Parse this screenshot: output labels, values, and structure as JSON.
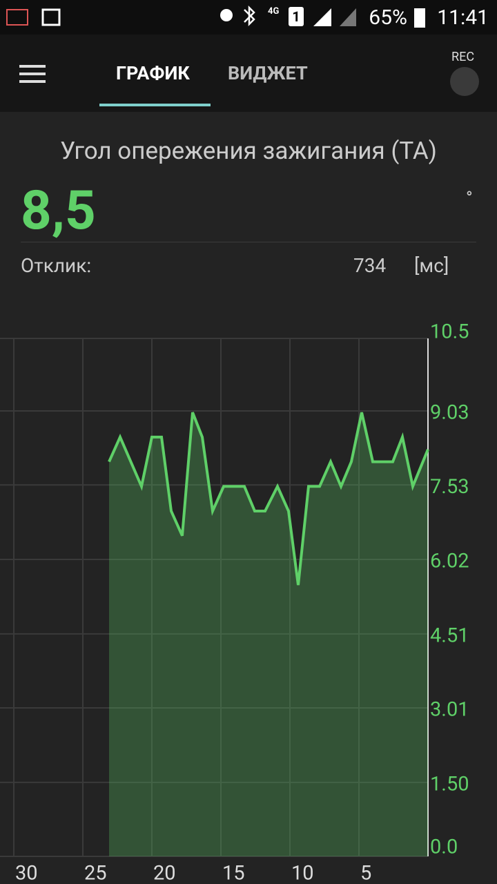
{
  "status_bar": {
    "network": "4G",
    "sim": "1",
    "battery": "65%",
    "time": "11:41"
  },
  "tabs": [
    "ГРАФИК",
    "ВИДЖЕТ"
  ],
  "active_tab": 0,
  "rec_label": "REC",
  "sensor": {
    "title": "Угол опережения зажигания (ТА)",
    "value": "8,5",
    "unit": "°",
    "response_label": "Отклик:",
    "response_value": 734,
    "response_unit": "[мс]"
  },
  "chart_data": {
    "type": "line",
    "color": "#5fd068",
    "fill": true,
    "grid": true,
    "y_axis_side": "right",
    "x": [
      23.1,
      22.3,
      20.75,
      20,
      19.3,
      18.6,
      17.8,
      17.05,
      16.35,
      15.6,
      14.8,
      13.3,
      12.55,
      11.8,
      10.9,
      10.1,
      9.4,
      8.65,
      7.85,
      7.05,
      6.3,
      5.55,
      4.8,
      4.0,
      2.55,
      1.85,
      1.1,
      0
    ],
    "values": [
      8.0,
      8.5,
      7.5,
      8.5,
      8.5,
      7.0,
      6.5,
      9.0,
      8.5,
      7.0,
      7.5,
      7.5,
      7.0,
      7.0,
      7.5,
      7.0,
      5.5,
      7.5,
      7.5,
      8.0,
      7.5,
      8.0,
      9.0,
      8.0,
      8.0,
      8.5,
      7.5,
      8.25
    ],
    "xlim": [
      31,
      0
    ],
    "xticks": [
      30,
      25,
      20,
      15,
      10,
      5
    ],
    "ylim": [
      0,
      10.5
    ],
    "yticks": [
      {
        "value": 0,
        "label": "0.0"
      },
      {
        "value": 1.5,
        "label": "1.50"
      },
      3.01,
      4.51,
      6.02,
      7.53,
      9.03,
      10.5
    ]
  }
}
